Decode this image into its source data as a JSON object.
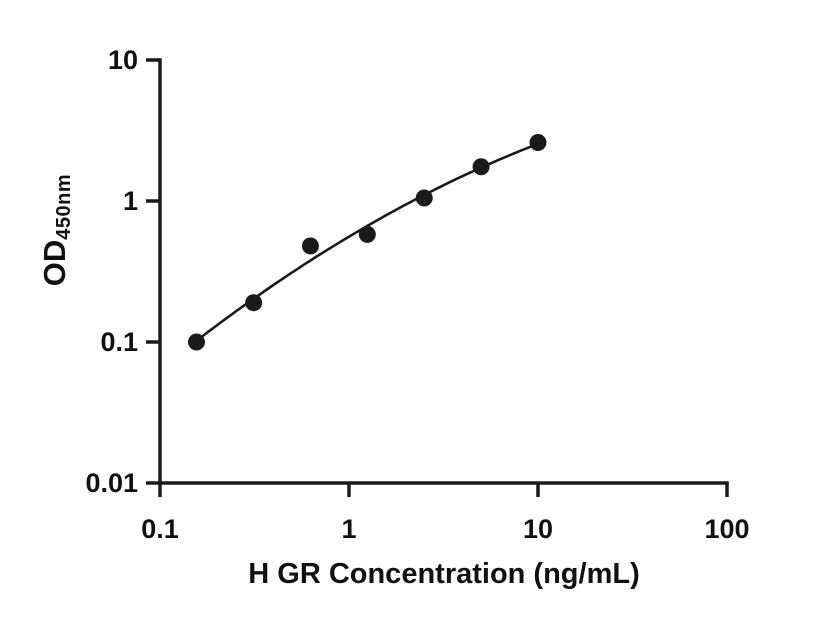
{
  "chart": {
    "xlabel": "H GR Concentration (ng/mL)",
    "ylabel_main": "OD",
    "ylabel_sub": "450nm"
  },
  "chart_data": {
    "type": "scatter",
    "x": [
      0.156,
      0.313,
      0.625,
      1.25,
      2.5,
      5,
      10
    ],
    "y": [
      0.1,
      0.19,
      0.48,
      0.58,
      1.05,
      1.75,
      2.6
    ],
    "title": "",
    "xlabel": "H GR Concentration (ng/mL)",
    "ylabel": "OD450nm",
    "xscale": "log",
    "yscale": "log",
    "xlim": [
      0.1,
      100
    ],
    "ylim": [
      0.01,
      10
    ],
    "x_ticks": [
      0.1,
      1,
      10,
      100
    ],
    "x_tick_labels": [
      "0.1",
      "1",
      "10",
      "100"
    ],
    "y_ticks": [
      0.01,
      0.1,
      1,
      10
    ],
    "y_tick_labels": [
      "0.01",
      "0.1",
      "1",
      "10"
    ],
    "marker": "filled-circle",
    "marker_color": "#1a1a1a",
    "line_color": "#1a1a1a",
    "fit": "quadratic-loglog",
    "grid": false,
    "legend": false
  }
}
